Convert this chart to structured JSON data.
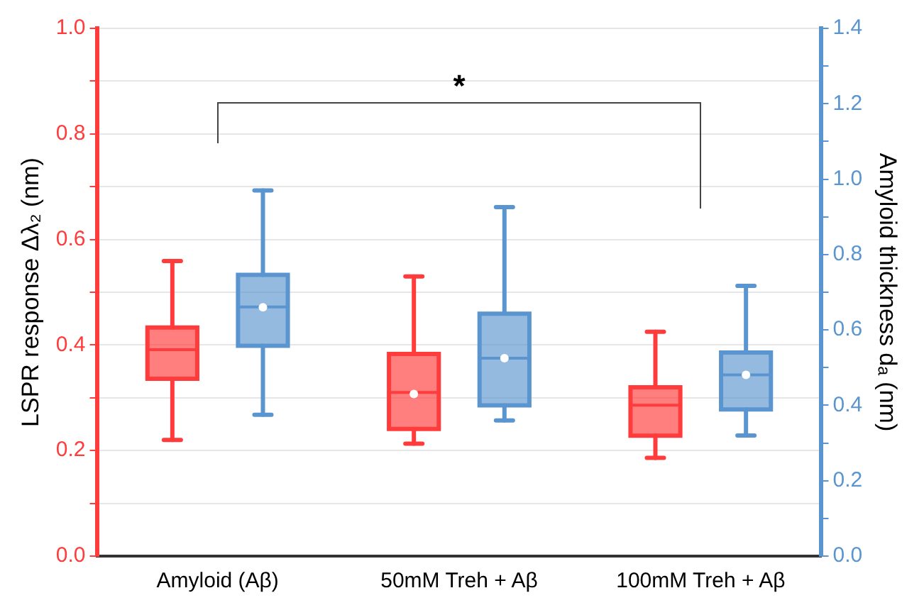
{
  "chart_data": {
    "type": "box",
    "categories": [
      "Amyloid (Aβ)",
      "50mM Treh + Aβ",
      "100mM Treh + Aβ"
    ],
    "ylabel": "LSPR response Δλ₂ (nm)",
    "y2label": "Amyloid thickness dₐ (nm)",
    "ylim": [
      0,
      1
    ],
    "yticks": [
      {
        "value": 0,
        "label": "0.0"
      },
      {
        "value": 0.1,
        "label": null
      },
      0.2,
      {
        "value": 0.3,
        "label": null
      },
      0.4,
      {
        "value": 0.5,
        "label": null
      },
      0.6,
      {
        "value": 0.7,
        "label": null
      },
      0.8,
      {
        "value": 0.9,
        "label": null
      },
      {
        "value": 1,
        "label": "1.0"
      }
    ],
    "y2lim": [
      0,
      1.4
    ],
    "y2ticks": [
      {
        "value": 0,
        "label": "0.0"
      },
      {
        "value": 0.1,
        "label": null
      },
      0.2,
      {
        "value": 0.3,
        "label": null
      },
      0.4,
      {
        "value": 0.5,
        "label": null
      },
      0.6,
      {
        "value": 0.7,
        "label": null
      },
      0.8,
      {
        "value": 0.9,
        "label": null
      },
      {
        "value": 1,
        "label": "1.0"
      },
      {
        "value": 1.1,
        "label": null
      },
      1.2,
      {
        "value": 1.3,
        "label": null
      },
      1.4
    ],
    "grid": "y",
    "annotations": [
      "*"
    ],
    "series": [
      {
        "color": "#ff3b3b",
        "axis": "y",
        "boxes": [
          {
            "low": 0.22,
            "q1": 0.336,
            "median": 0.391,
            "q3": 0.433,
            "high": 0.559
          },
          {
            "low": 0.213,
            "q1": 0.241,
            "median": 0.31,
            "q3": 0.383,
            "high": 0.53,
            "mean": 0.307
          },
          {
            "low": 0.186,
            "q1": 0.228,
            "median": 0.286,
            "q3": 0.32,
            "high": 0.425
          }
        ]
      },
      {
        "color": "#5b95cf",
        "axis": "y2",
        "boxes": [
          {
            "low": 0.375,
            "q1": 0.558,
            "median": 0.661,
            "q3": 0.746,
            "high": 0.97,
            "mean": 0.66
          },
          {
            "low": 0.36,
            "q1": 0.4,
            "median": 0.525,
            "q3": 0.643,
            "high": 0.926,
            "mean": 0.525
          },
          {
            "low": 0.32,
            "q1": 0.389,
            "median": 0.481,
            "q3": 0.54,
            "high": 0.717,
            "mean": 0.481
          }
        ]
      }
    ]
  }
}
